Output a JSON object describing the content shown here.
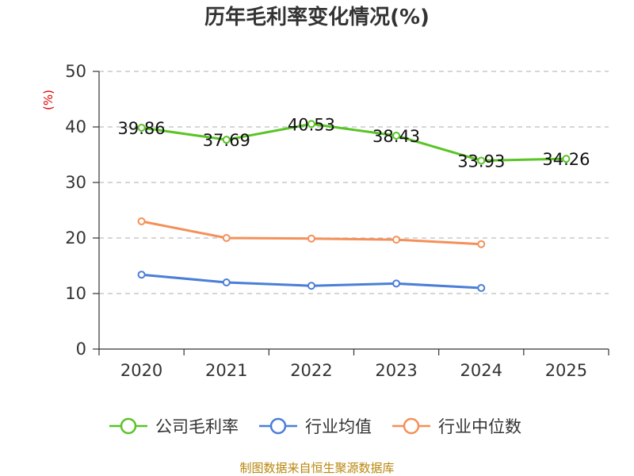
{
  "chart_data": {
    "type": "line",
    "title": "历年毛利率变化情况(%)",
    "ylabel": "(%)",
    "xlabel": "",
    "categories": [
      "2020",
      "2021",
      "2022",
      "2023",
      "2024",
      "2025"
    ],
    "ylim": [
      0,
      50
    ],
    "yticks": [
      "0",
      "10",
      "20",
      "30",
      "40",
      "50"
    ],
    "grid": true,
    "legend_position": "bottom",
    "series": [
      {
        "name": "公司毛利率",
        "color": "#5ac427",
        "values": [
          39.86,
          37.69,
          40.53,
          38.43,
          33.93,
          34.26
        ],
        "labels": [
          "39.86",
          "37.69",
          "40.53",
          "38.43",
          "33.93",
          "34.26"
        ]
      },
      {
        "name": "行业均值",
        "color": "#4a7ed8",
        "values": [
          13.4,
          12.0,
          11.4,
          11.8,
          11.0,
          null
        ]
      },
      {
        "name": "行业中位数",
        "color": "#f49059",
        "values": [
          23.0,
          20.0,
          19.9,
          19.7,
          18.9,
          null
        ]
      }
    ],
    "source": "制图数据来自恒生聚源数据库"
  }
}
